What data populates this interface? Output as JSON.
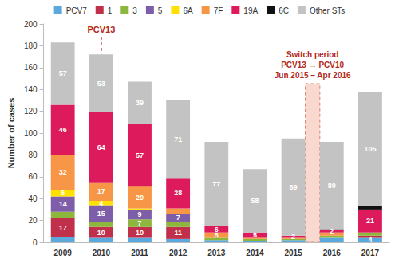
{
  "chart_data": {
    "type": "bar",
    "stacked": true,
    "data_labels": true,
    "grid": false,
    "legend": "top",
    "y_label": "Number of cases",
    "categories": [
      "2009",
      "2010",
      "2011",
      "2012",
      "2013",
      "2014",
      "2015",
      "2016",
      "2017"
    ],
    "ylim": [
      0,
      200
    ],
    "yticks": [
      0,
      20,
      40,
      60,
      80,
      100,
      120,
      140,
      160,
      180,
      200
    ],
    "series": [
      {
        "name": "PCV7",
        "color": "#5ba8dd",
        "values": [
          5,
          4,
          4,
          3,
          2,
          1,
          2,
          4,
          4
        ],
        "value_labels": [
          null,
          null,
          null,
          null,
          null,
          null,
          null,
          null,
          "4"
        ]
      },
      {
        "name": "1",
        "color": "#c0304a",
        "values": [
          17,
          10,
          10,
          11,
          0,
          0,
          0,
          0,
          2
        ],
        "value_labels": [
          "17",
          "10",
          "10",
          "11",
          null,
          null,
          null,
          null,
          null
        ]
      },
      {
        "name": "3",
        "color": "#8db63c",
        "values": [
          6,
          5,
          7,
          5,
          2,
          2,
          1,
          2,
          3
        ],
        "value_labels": [
          null,
          null,
          "7",
          null,
          null,
          null,
          null,
          null,
          null
        ]
      },
      {
        "name": "5",
        "color": "#7e5ea8",
        "values": [
          14,
          15,
          9,
          7,
          0,
          0,
          0,
          0,
          0
        ],
        "value_labels": [
          "14",
          "15",
          "9",
          "7",
          null,
          null,
          null,
          null,
          null
        ]
      },
      {
        "name": "6A",
        "color": "#ffe100",
        "values": [
          6,
          4,
          1,
          0,
          0,
          0,
          0,
          0,
          0
        ],
        "value_labels": [
          "6",
          "4",
          null,
          null,
          null,
          null,
          null,
          null,
          null
        ]
      },
      {
        "name": "7F",
        "color": "#f79646",
        "values": [
          32,
          17,
          20,
          5,
          5,
          1,
          1,
          3,
          0
        ],
        "value_labels": [
          "32",
          "17",
          "20",
          null,
          "5",
          null,
          null,
          null,
          null
        ]
      },
      {
        "name": "19A",
        "color": "#dc1a5c",
        "values": [
          46,
          64,
          57,
          28,
          6,
          5,
          2,
          2,
          21
        ],
        "value_labels": [
          "46",
          "64",
          "57",
          "28",
          "6",
          "5",
          "2",
          "2",
          "21"
        ]
      },
      {
        "name": "6C",
        "color": "#111111",
        "values": [
          0,
          0,
          0,
          0,
          0,
          0,
          0,
          1,
          3
        ],
        "value_labels": [
          null,
          null,
          null,
          null,
          null,
          null,
          null,
          null,
          null
        ]
      },
      {
        "name": "Other STs",
        "color": "#c3c3c3",
        "values": [
          57,
          53,
          39,
          71,
          77,
          58,
          89,
          80,
          105
        ],
        "value_labels": [
          "57",
          "53",
          "39",
          "71",
          "77",
          "58",
          "89",
          "80",
          "105"
        ]
      }
    ],
    "annotations": [
      {
        "text": "PCV13",
        "category": "2010"
      },
      {
        "text": [
          "Switch period",
          "PCV13 → PCV10",
          "Jun 2015 – Apr 2016"
        ],
        "from": "2015",
        "to": "2016"
      }
    ]
  }
}
